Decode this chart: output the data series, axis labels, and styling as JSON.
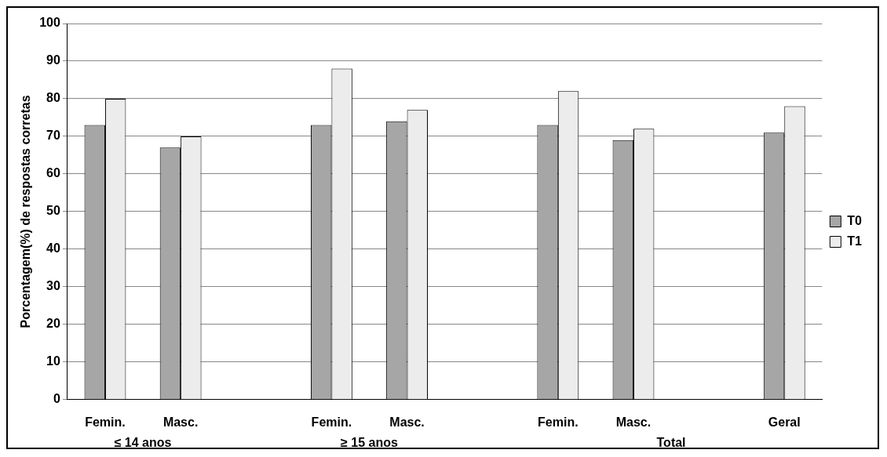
{
  "chart_data": {
    "type": "bar",
    "ylabel": "Porcentagem(%) de respostas corretas",
    "categories": [
      "Femin.",
      "Masc.",
      null,
      "Femin.",
      "Masc.",
      null,
      "Femin.",
      "Masc.",
      null,
      "Geral"
    ],
    "series": [
      {
        "name": "T0",
        "color": "#a6a6a6",
        "values": [
          73,
          67,
          null,
          73,
          74,
          null,
          73,
          69,
          null,
          71
        ]
      },
      {
        "name": "T1",
        "color": "#ececec",
        "values": [
          80,
          70,
          null,
          88,
          77,
          null,
          82,
          72,
          null,
          78
        ]
      }
    ],
    "ylim": [
      0,
      100
    ],
    "yticks": [
      0,
      10,
      20,
      30,
      40,
      50,
      60,
      70,
      80,
      90,
      100
    ],
    "grid": "y",
    "legend": "right",
    "annotations": [
      "≤ 14 anos",
      "≥ 15 anos",
      "Total"
    ]
  }
}
